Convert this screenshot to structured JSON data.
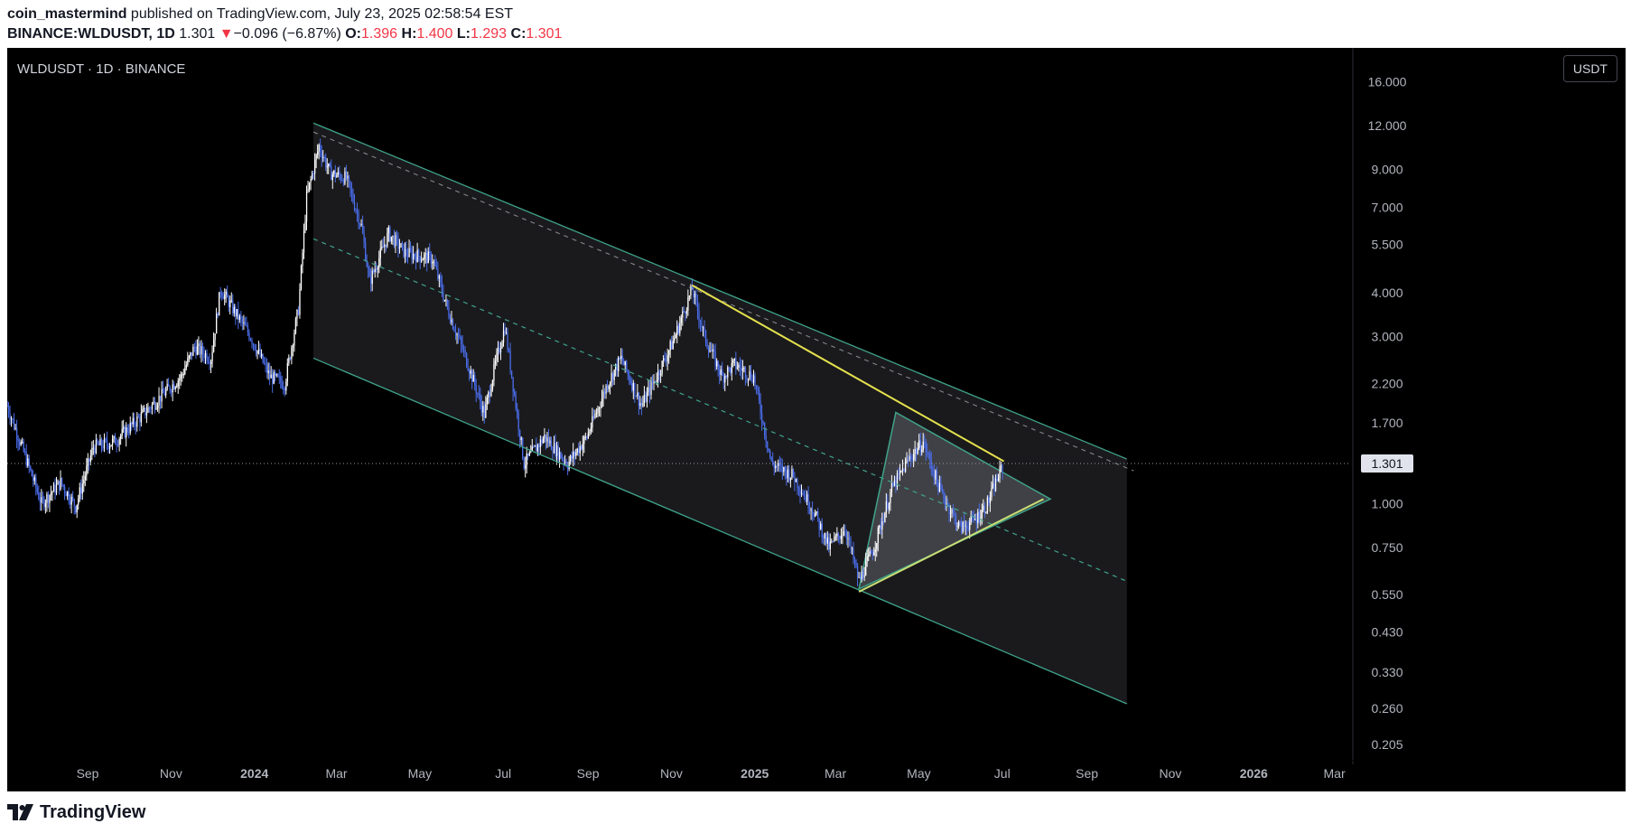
{
  "header": {
    "author": "coin_mastermind",
    "published": " published on TradingView.com, July 23, 2025 02:58:54 EST",
    "symbol": "BINANCE:WLDUSDT, 1D",
    "last": "1.301",
    "down_arrow": "▼",
    "change": "−0.096 (−6.87%)",
    "o_label": "O:",
    "o": "1.396",
    "h_label": "H:",
    "h": "1.400",
    "l_label": "L:",
    "l": "1.293",
    "c_label": "C:",
    "c": "1.301"
  },
  "legend": {
    "title": "WLDUSDT · 1D · BINANCE"
  },
  "currency_button": "USDT",
  "footer": {
    "logo_text": "TradingView",
    "logo_icon": "tradingview-logo-icon"
  },
  "colors": {
    "background": "#000000",
    "candle_up": "#ffffff",
    "candle_down": "#4a6ce8",
    "channel_line": "#3fa38a",
    "triangle_line": "#e5e24d",
    "price_label_bg": "#e0e3eb"
  },
  "chart_data": {
    "type": "candlestick",
    "symbol": "WLDUSDT",
    "interval": "1D",
    "exchange": "BINANCE",
    "y_scale": "log",
    "ylim": [
      0.18,
      20
    ],
    "x_range": [
      "2023-07-24",
      "2026-03-31"
    ],
    "y_ticks": [
      "16.000",
      "12.000",
      "9.000",
      "7.000",
      "5.500",
      "4.000",
      "3.000",
      "2.200",
      "1.700",
      "1.000",
      "0.750",
      "0.550",
      "0.430",
      "0.330",
      "0.260",
      "0.205"
    ],
    "x_ticks": [
      {
        "label": "Sep",
        "date": "2023-09-01",
        "bold": false
      },
      {
        "label": "Nov",
        "date": "2023-11-01",
        "bold": false
      },
      {
        "label": "2024",
        "date": "2024-01-01",
        "bold": true
      },
      {
        "label": "Mar",
        "date": "2024-03-01",
        "bold": false
      },
      {
        "label": "May",
        "date": "2024-05-01",
        "bold": false
      },
      {
        "label": "Jul",
        "date": "2024-07-01",
        "bold": false
      },
      {
        "label": "Sep",
        "date": "2024-09-01",
        "bold": false
      },
      {
        "label": "Nov",
        "date": "2024-11-01",
        "bold": false
      },
      {
        "label": "2025",
        "date": "2025-01-01",
        "bold": true
      },
      {
        "label": "Mar",
        "date": "2025-03-01",
        "bold": false
      },
      {
        "label": "May",
        "date": "2025-05-01",
        "bold": false
      },
      {
        "label": "Jul",
        "date": "2025-07-01",
        "bold": false
      },
      {
        "label": "Sep",
        "date": "2025-09-01",
        "bold": false
      },
      {
        "label": "Nov",
        "date": "2025-11-01",
        "bold": false
      },
      {
        "label": "2026",
        "date": "2026-01-01",
        "bold": true
      },
      {
        "label": "Mar",
        "date": "2026-03-01",
        "bold": false
      }
    ],
    "last_price": 1.301,
    "last_price_label": "1.301",
    "price_path": [
      [
        "2023-07-24",
        1.9
      ],
      [
        "2023-08-08",
        1.3
      ],
      [
        "2023-08-18",
        1.0
      ],
      [
        "2023-09-01",
        1.15
      ],
      [
        "2023-09-12",
        0.98
      ],
      [
        "2023-09-25",
        1.45
      ],
      [
        "2023-10-10",
        1.5
      ],
      [
        "2023-10-25",
        1.7
      ],
      [
        "2023-11-12",
        2.0
      ],
      [
        "2023-11-28",
        2.3
      ],
      [
        "2023-12-08",
        2.8
      ],
      [
        "2023-12-20",
        2.6
      ],
      [
        "2023-12-27",
        4.1
      ],
      [
        "2024-01-05",
        3.6
      ],
      [
        "2024-01-18",
        3.0
      ],
      [
        "2024-02-01",
        2.3
      ],
      [
        "2024-02-12",
        2.2
      ],
      [
        "2024-02-22",
        3.6
      ],
      [
        "2024-02-28",
        7.5
      ],
      [
        "2024-03-08",
        10.5
      ],
      [
        "2024-03-16",
        8.8
      ],
      [
        "2024-03-28",
        8.5
      ],
      [
        "2024-04-08",
        6.2
      ],
      [
        "2024-04-14",
        4.3
      ],
      [
        "2024-04-28",
        5.9
      ],
      [
        "2024-05-10",
        5.2
      ],
      [
        "2024-05-30",
        5.0
      ],
      [
        "2024-06-10",
        3.6
      ],
      [
        "2024-06-25",
        2.5
      ],
      [
        "2024-07-07",
        1.8
      ],
      [
        "2024-07-15",
        2.5
      ],
      [
        "2024-07-22",
        3.2
      ],
      [
        "2024-08-05",
        1.3
      ],
      [
        "2024-08-20",
        1.55
      ],
      [
        "2024-09-06",
        1.3
      ],
      [
        "2024-09-20",
        1.55
      ],
      [
        "2024-10-05",
        2.2
      ],
      [
        "2024-10-15",
        2.6
      ],
      [
        "2024-10-30",
        1.9
      ],
      [
        "2024-11-12",
        2.4
      ],
      [
        "2024-11-22",
        2.9
      ],
      [
        "2024-12-06",
        4.1
      ],
      [
        "2024-12-15",
        3.0
      ],
      [
        "2024-12-28",
        2.3
      ],
      [
        "2025-01-06",
        2.5
      ],
      [
        "2025-01-20",
        2.3
      ],
      [
        "2025-02-02",
        1.3
      ],
      [
        "2025-02-18",
        1.2
      ],
      [
        "2025-03-05",
        0.95
      ],
      [
        "2025-03-16",
        0.75
      ],
      [
        "2025-03-28",
        0.85
      ],
      [
        "2025-04-07",
        0.6
      ],
      [
        "2025-04-18",
        0.75
      ],
      [
        "2025-05-01",
        1.1
      ],
      [
        "2025-05-14",
        1.35
      ],
      [
        "2025-05-24",
        1.5
      ],
      [
        "2025-06-05",
        1.1
      ],
      [
        "2025-06-20",
        0.85
      ],
      [
        "2025-07-01",
        0.9
      ],
      [
        "2025-07-10",
        1.0
      ],
      [
        "2025-07-18",
        1.2
      ],
      [
        "2025-07-22",
        1.301
      ]
    ],
    "drawings": {
      "channel_upper": [
        [
          "2024-03-04",
          12.2
        ],
        [
          "2025-10-20",
          1.34
        ]
      ],
      "channel_lower": [
        [
          "2024-03-04",
          2.6
        ],
        [
          "2025-10-20",
          0.268
        ]
      ],
      "channel_mid_dashed": [
        [
          "2024-03-04",
          5.7
        ],
        [
          "2025-10-20",
          0.6
        ]
      ],
      "channel_top_dashed": [
        [
          "2024-03-04",
          11.5
        ],
        [
          "2025-10-25",
          1.24
        ]
      ],
      "triangle_resistance": [
        [
          "2024-12-06",
          4.2
        ],
        [
          "2025-07-22",
          1.32
        ]
      ],
      "triangle_support": [
        [
          "2025-04-07",
          0.56
        ],
        [
          "2025-08-20",
          1.03
        ]
      ],
      "triangle_shape": [
        [
          "2025-04-07",
          0.57
        ],
        [
          "2025-05-04",
          1.82
        ],
        [
          "2025-08-25",
          1.03
        ]
      ]
    }
  }
}
